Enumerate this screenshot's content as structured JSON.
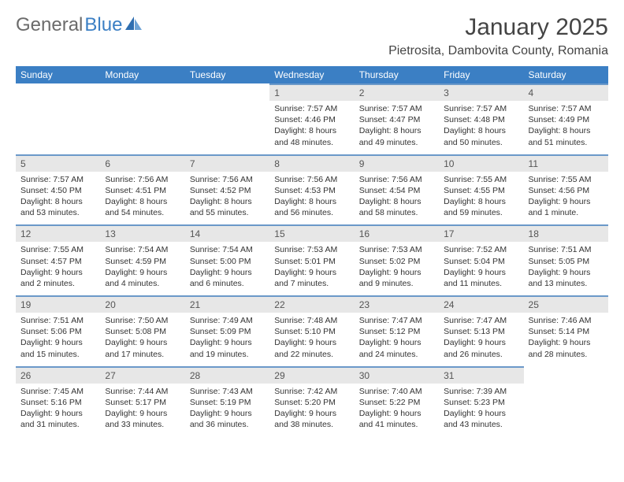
{
  "brand": {
    "part1": "General",
    "part2": "Blue"
  },
  "title": "January 2025",
  "location": "Pietrosita, Dambovita County, Romania",
  "colors": {
    "headerBg": "#3b7fc4",
    "dayBarBg": "#e7e7e7",
    "dayBarBorder": "#6b99c9",
    "text": "#333333",
    "logoGray": "#6b6b6b",
    "logoBlue": "#3b7fc4"
  },
  "weekdays": [
    "Sunday",
    "Monday",
    "Tuesday",
    "Wednesday",
    "Thursday",
    "Friday",
    "Saturday"
  ],
  "weeks": [
    [
      null,
      null,
      null,
      {
        "n": "1",
        "sr": "7:57 AM",
        "ss": "4:46 PM",
        "dl": "8 hours and 48 minutes."
      },
      {
        "n": "2",
        "sr": "7:57 AM",
        "ss": "4:47 PM",
        "dl": "8 hours and 49 minutes."
      },
      {
        "n": "3",
        "sr": "7:57 AM",
        "ss": "4:48 PM",
        "dl": "8 hours and 50 minutes."
      },
      {
        "n": "4",
        "sr": "7:57 AM",
        "ss": "4:49 PM",
        "dl": "8 hours and 51 minutes."
      }
    ],
    [
      {
        "n": "5",
        "sr": "7:57 AM",
        "ss": "4:50 PM",
        "dl": "8 hours and 53 minutes."
      },
      {
        "n": "6",
        "sr": "7:56 AM",
        "ss": "4:51 PM",
        "dl": "8 hours and 54 minutes."
      },
      {
        "n": "7",
        "sr": "7:56 AM",
        "ss": "4:52 PM",
        "dl": "8 hours and 55 minutes."
      },
      {
        "n": "8",
        "sr": "7:56 AM",
        "ss": "4:53 PM",
        "dl": "8 hours and 56 minutes."
      },
      {
        "n": "9",
        "sr": "7:56 AM",
        "ss": "4:54 PM",
        "dl": "8 hours and 58 minutes."
      },
      {
        "n": "10",
        "sr": "7:55 AM",
        "ss": "4:55 PM",
        "dl": "8 hours and 59 minutes."
      },
      {
        "n": "11",
        "sr": "7:55 AM",
        "ss": "4:56 PM",
        "dl": "9 hours and 1 minute."
      }
    ],
    [
      {
        "n": "12",
        "sr": "7:55 AM",
        "ss": "4:57 PM",
        "dl": "9 hours and 2 minutes."
      },
      {
        "n": "13",
        "sr": "7:54 AM",
        "ss": "4:59 PM",
        "dl": "9 hours and 4 minutes."
      },
      {
        "n": "14",
        "sr": "7:54 AM",
        "ss": "5:00 PM",
        "dl": "9 hours and 6 minutes."
      },
      {
        "n": "15",
        "sr": "7:53 AM",
        "ss": "5:01 PM",
        "dl": "9 hours and 7 minutes."
      },
      {
        "n": "16",
        "sr": "7:53 AM",
        "ss": "5:02 PM",
        "dl": "9 hours and 9 minutes."
      },
      {
        "n": "17",
        "sr": "7:52 AM",
        "ss": "5:04 PM",
        "dl": "9 hours and 11 minutes."
      },
      {
        "n": "18",
        "sr": "7:51 AM",
        "ss": "5:05 PM",
        "dl": "9 hours and 13 minutes."
      }
    ],
    [
      {
        "n": "19",
        "sr": "7:51 AM",
        "ss": "5:06 PM",
        "dl": "9 hours and 15 minutes."
      },
      {
        "n": "20",
        "sr": "7:50 AM",
        "ss": "5:08 PM",
        "dl": "9 hours and 17 minutes."
      },
      {
        "n": "21",
        "sr": "7:49 AM",
        "ss": "5:09 PM",
        "dl": "9 hours and 19 minutes."
      },
      {
        "n": "22",
        "sr": "7:48 AM",
        "ss": "5:10 PM",
        "dl": "9 hours and 22 minutes."
      },
      {
        "n": "23",
        "sr": "7:47 AM",
        "ss": "5:12 PM",
        "dl": "9 hours and 24 minutes."
      },
      {
        "n": "24",
        "sr": "7:47 AM",
        "ss": "5:13 PM",
        "dl": "9 hours and 26 minutes."
      },
      {
        "n": "25",
        "sr": "7:46 AM",
        "ss": "5:14 PM",
        "dl": "9 hours and 28 minutes."
      }
    ],
    [
      {
        "n": "26",
        "sr": "7:45 AM",
        "ss": "5:16 PM",
        "dl": "9 hours and 31 minutes."
      },
      {
        "n": "27",
        "sr": "7:44 AM",
        "ss": "5:17 PM",
        "dl": "9 hours and 33 minutes."
      },
      {
        "n": "28",
        "sr": "7:43 AM",
        "ss": "5:19 PM",
        "dl": "9 hours and 36 minutes."
      },
      {
        "n": "29",
        "sr": "7:42 AM",
        "ss": "5:20 PM",
        "dl": "9 hours and 38 minutes."
      },
      {
        "n": "30",
        "sr": "7:40 AM",
        "ss": "5:22 PM",
        "dl": "9 hours and 41 minutes."
      },
      {
        "n": "31",
        "sr": "7:39 AM",
        "ss": "5:23 PM",
        "dl": "9 hours and 43 minutes."
      },
      null
    ]
  ],
  "labels": {
    "sunrise": "Sunrise:",
    "sunset": "Sunset:",
    "daylight": "Daylight:"
  }
}
